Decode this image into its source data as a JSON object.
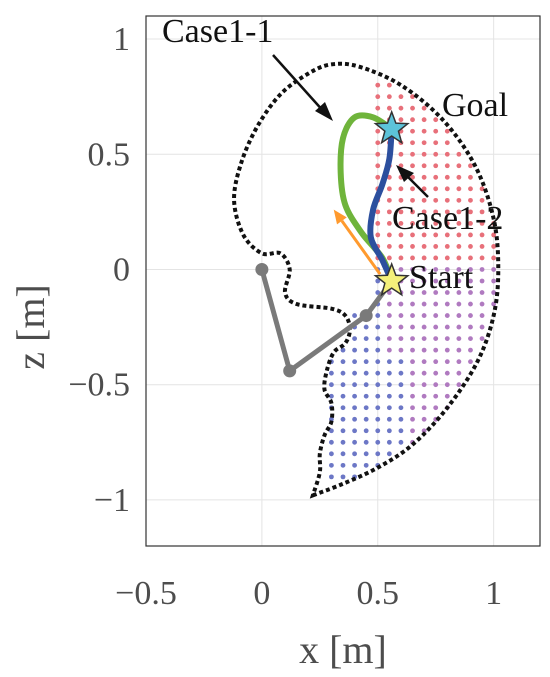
{
  "chart_data": {
    "type": "scatter",
    "title": "",
    "xlabel": "x [m]",
    "ylabel": "z [m]",
    "xlim": [
      -0.5,
      1.2
    ],
    "ylim": [
      -1.2,
      1.1
    ],
    "grid": true,
    "x_ticks": [
      -0.5,
      0,
      0.5,
      1
    ],
    "y_ticks": [
      1,
      0.5,
      0,
      -0.5,
      -1
    ],
    "x_tick_labels": [
      "−0.5",
      "0",
      "0.5",
      "1"
    ],
    "y_tick_labels": [
      "1",
      "0.5",
      "0",
      "−0.5",
      "−1"
    ],
    "annotations": {
      "case1_1": "Case1-1",
      "case1_2": "Case1-2",
      "goal": "Goal",
      "start": "Start"
    },
    "start_point": [
      0.56,
      -0.05
    ],
    "goal_point": [
      0.56,
      0.61
    ],
    "arm_links": [
      [
        0.0,
        0.0
      ],
      [
        0.12,
        -0.44
      ],
      [
        0.45,
        -0.2
      ],
      [
        0.56,
        -0.05
      ]
    ],
    "workspace_boundary": [
      [
        0.22,
        -0.98
      ],
      [
        0.35,
        -0.93
      ],
      [
        0.5,
        -0.86
      ],
      [
        0.65,
        -0.76
      ],
      [
        0.8,
        -0.6
      ],
      [
        0.93,
        -0.4
      ],
      [
        1.0,
        -0.2
      ],
      [
        1.02,
        0.0
      ],
      [
        1.0,
        0.22
      ],
      [
        0.92,
        0.45
      ],
      [
        0.78,
        0.65
      ],
      [
        0.6,
        0.8
      ],
      [
        0.42,
        0.88
      ],
      [
        0.3,
        0.89
      ],
      [
        0.2,
        0.85
      ],
      [
        0.08,
        0.76
      ],
      [
        -0.02,
        0.62
      ],
      [
        -0.09,
        0.46
      ],
      [
        -0.12,
        0.3
      ],
      [
        -0.08,
        0.15
      ],
      [
        0.0,
        0.07
      ],
      [
        0.08,
        0.07
      ],
      [
        0.12,
        0.0
      ],
      [
        0.1,
        -0.1
      ],
      [
        0.15,
        -0.15
      ],
      [
        0.3,
        -0.17
      ],
      [
        0.36,
        -0.2
      ],
      [
        0.38,
        -0.26
      ],
      [
        0.36,
        -0.32
      ],
      [
        0.31,
        -0.36
      ],
      [
        0.28,
        -0.44
      ],
      [
        0.27,
        -0.52
      ],
      [
        0.3,
        -0.58
      ],
      [
        0.3,
        -0.66
      ],
      [
        0.27,
        -0.72
      ],
      [
        0.25,
        -0.8
      ],
      [
        0.25,
        -0.88
      ],
      [
        0.22,
        -0.98
      ]
    ],
    "series": [
      {
        "color": "#6fb43b",
        "points": [
          [
            0.56,
            -0.05
          ],
          [
            0.52,
            0.05
          ],
          [
            0.43,
            0.16
          ],
          [
            0.36,
            0.28
          ],
          [
            0.34,
            0.42
          ],
          [
            0.35,
            0.57
          ],
          [
            0.4,
            0.66
          ],
          [
            0.48,
            0.66
          ],
          [
            0.56,
            0.61
          ]
        ]
      },
      {
        "color": "#2c4f9e",
        "points": [
          [
            0.56,
            -0.05
          ],
          [
            0.52,
            0.04
          ],
          [
            0.47,
            0.14
          ],
          [
            0.48,
            0.26
          ],
          [
            0.52,
            0.37
          ],
          [
            0.55,
            0.48
          ],
          [
            0.56,
            0.61
          ]
        ]
      }
    ],
    "arrows": [
      {
        "color": "#ff9a2e",
        "from": [
          0.51,
          -0.02
        ],
        "to": [
          0.31,
          0.26
        ]
      }
    ],
    "dot_colors": {
      "red": "#e8707a",
      "blue": "#6c77c6",
      "purple": "#b07ac0"
    }
  }
}
